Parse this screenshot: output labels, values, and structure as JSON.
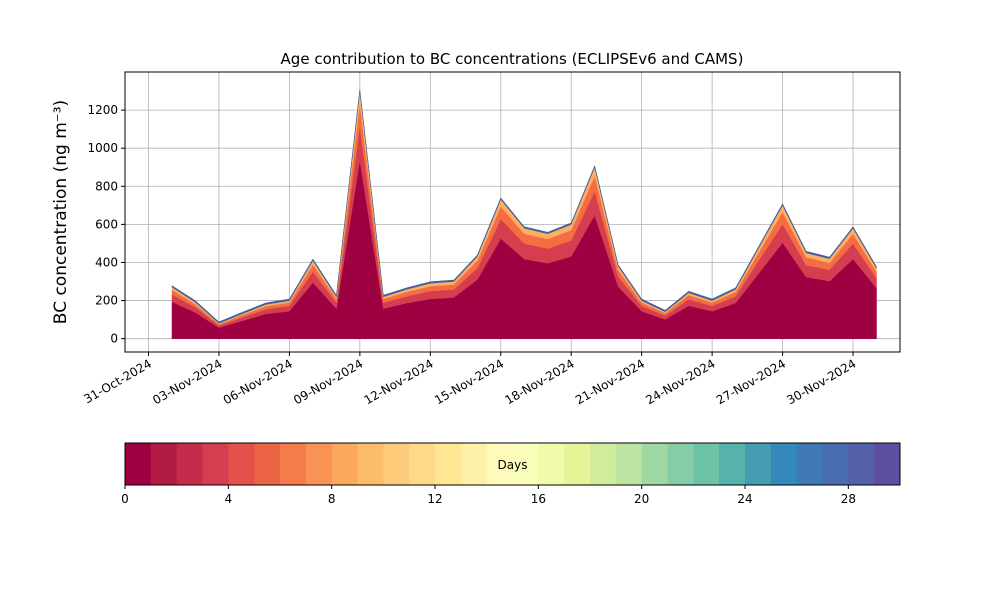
{
  "chart_data": {
    "type": "stacked_area",
    "title": "Age contribution to BC concentrations (ECLIPSEv6 and CAMS)",
    "y_label": "BC concentration (ng m⁻³)",
    "x": [
      "2024-11-01",
      "2024-11-02",
      "2024-11-03",
      "2024-11-04",
      "2024-11-05",
      "2024-11-06",
      "2024-11-07",
      "2024-11-08",
      "2024-11-09",
      "2024-11-10",
      "2024-11-11",
      "2024-11-12",
      "2024-11-13",
      "2024-11-14",
      "2024-11-15",
      "2024-11-16",
      "2024-11-17",
      "2024-11-18",
      "2024-11-19",
      "2024-11-20",
      "2024-11-21",
      "2024-11-22",
      "2024-11-23",
      "2024-11-24",
      "2024-11-25",
      "2024-11-26",
      "2024-11-27",
      "2024-11-28",
      "2024-11-29",
      "2024-11-30",
      "2024-12-01"
    ],
    "series": [
      {
        "color": "#9e0142",
        "values": [
          194,
          137,
          58,
          94,
          130,
          144,
          295,
          158,
          936,
          158,
          187,
          209,
          216,
          310,
          526,
          418,
          396,
          432,
          648,
          274,
          144,
          101,
          173,
          144,
          187,
          346,
          504,
          324,
          302,
          418,
          266
        ]
      },
      {
        "color": "#d53e4f",
        "values": [
          38,
          27,
          11,
          18,
          25,
          28,
          57,
          31,
          182,
          31,
          36,
          41,
          42,
          60,
          102,
          81,
          77,
          84,
          126,
          53,
          28,
          20,
          34,
          28,
          36,
          67,
          98,
          63,
          59,
          81,
          52
        ]
      },
      {
        "color": "#f46d43",
        "values": [
          24,
          17,
          7,
          12,
          16,
          18,
          37,
          20,
          117,
          20,
          23,
          26,
          27,
          39,
          66,
          52,
          50,
          54,
          81,
          34,
          18,
          13,
          22,
          18,
          23,
          43,
          63,
          41,
          38,
          52,
          33
        ]
      },
      {
        "color": "#fdae61",
        "values": [
          14,
          10,
          4,
          7,
          9,
          10,
          21,
          11,
          65,
          11,
          13,
          15,
          15,
          22,
          37,
          29,
          28,
          30,
          45,
          19,
          10,
          7,
          12,
          10,
          13,
          24,
          35,
          23,
          21,
          29,
          19
        ]
      },
      {
        "color": "#3f5f9e",
        "values": [
          8,
          8,
          8,
          8,
          8,
          8,
          8,
          8,
          8,
          8,
          8,
          8,
          8,
          8,
          8,
          8,
          8,
          8,
          8,
          8,
          8,
          8,
          8,
          8,
          8,
          8,
          8,
          8,
          8,
          8,
          8
        ]
      }
    ],
    "xlim": [
      "2024-10-30",
      "2024-12-02"
    ],
    "xticks": [
      {
        "value": "2024-10-31",
        "label": "31-Oct-2024"
      },
      {
        "value": "2024-11-03",
        "label": "03-Nov-2024"
      },
      {
        "value": "2024-11-06",
        "label": "06-Nov-2024"
      },
      {
        "value": "2024-11-09",
        "label": "09-Nov-2024"
      },
      {
        "value": "2024-11-12",
        "label": "12-Nov-2024"
      },
      {
        "value": "2024-11-15",
        "label": "15-Nov-2024"
      },
      {
        "value": "2024-11-18",
        "label": "18-Nov-2024"
      },
      {
        "value": "2024-11-21",
        "label": "21-Nov-2024"
      },
      {
        "value": "2024-11-24",
        "label": "24-Nov-2024"
      },
      {
        "value": "2024-11-27",
        "label": "27-Nov-2024"
      },
      {
        "value": "2024-11-30",
        "label": "30-Nov-2024"
      }
    ],
    "ylim": [
      -70,
      1400
    ],
    "yticks": [
      0,
      200,
      400,
      600,
      800,
      1000,
      1200
    ],
    "grid": true,
    "colorbar": {
      "label": "Days",
      "lim": [
        0,
        30
      ],
      "ticks": [
        0,
        4,
        8,
        12,
        16,
        20,
        24,
        28
      ],
      "colors": [
        "#9e0142",
        "#b01a44",
        "#c42c4a",
        "#d53e4f",
        "#e2514a",
        "#ec6446",
        "#f67b4a",
        "#f99254",
        "#fca85e",
        "#fdbb6c",
        "#fdca79",
        "#fed987",
        "#fee695",
        "#fff0a9",
        "#fffab9",
        "#fbfdba",
        "#f2faab",
        "#e6f598",
        "#d1ec9c",
        "#bbe3a1",
        "#a0d8a4",
        "#86cda5",
        "#6cc3a6",
        "#58b1ab",
        "#459db2",
        "#3589ba",
        "#3f7ab7",
        "#4a6cb0",
        "#5460a9",
        "#5e4fa2"
      ]
    }
  }
}
